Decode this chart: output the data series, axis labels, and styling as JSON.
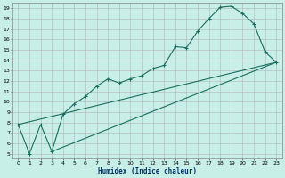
{
  "xlabel": "Humidex (Indice chaleur)",
  "bg_color": "#c8eee8",
  "grid_color": "#b0b0b0",
  "line_color": "#1a6e60",
  "xlim": [
    -0.5,
    23.5
  ],
  "ylim": [
    4.5,
    19.5
  ],
  "xticks": [
    0,
    1,
    2,
    3,
    4,
    5,
    6,
    7,
    8,
    9,
    10,
    11,
    12,
    13,
    14,
    15,
    16,
    17,
    18,
    19,
    20,
    21,
    22,
    23
  ],
  "yticks": [
    5,
    6,
    7,
    8,
    9,
    10,
    11,
    12,
    13,
    14,
    15,
    16,
    17,
    18,
    19
  ],
  "curve1_x": [
    0,
    1,
    2,
    3,
    4,
    5,
    6,
    7,
    8,
    9,
    10,
    11,
    12,
    13,
    14,
    15,
    16,
    17,
    18,
    19,
    20,
    21,
    22,
    23
  ],
  "curve1_y": [
    7.8,
    5.0,
    7.8,
    5.2,
    8.8,
    9.8,
    10.5,
    11.5,
    12.2,
    11.8,
    12.2,
    12.5,
    13.2,
    13.5,
    15.3,
    15.2,
    16.8,
    18.0,
    19.1,
    19.2,
    18.5,
    17.5,
    14.8,
    13.8
  ],
  "line2_x": [
    0,
    23
  ],
  "line2_y": [
    7.8,
    13.8
  ],
  "line3_x": [
    3,
    23
  ],
  "line3_y": [
    5.2,
    13.8
  ]
}
